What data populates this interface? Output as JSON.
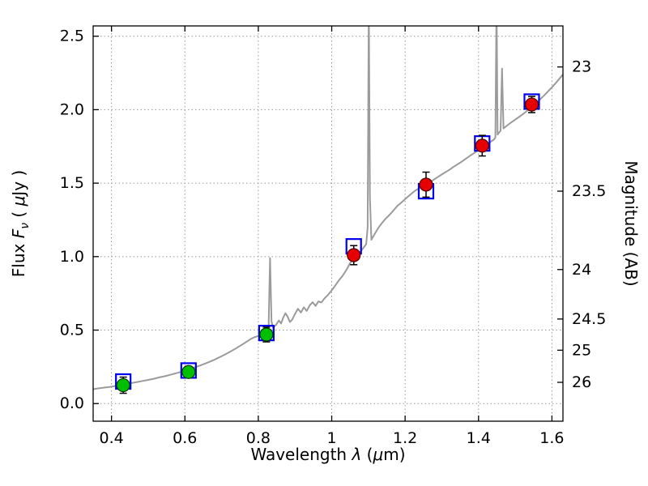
{
  "figure": {
    "background": "#ffffff",
    "frame_color": "#000000"
  },
  "chart_data": {
    "type": "line+scatter",
    "title": "",
    "xlabel_parts": [
      {
        "t": "Wavelength  "
      },
      {
        "t": "λ",
        "i": true
      },
      {
        "t": " ("
      },
      {
        "t": "μ",
        "i": true
      },
      {
        "t": "m)"
      }
    ],
    "ylabel_left_parts": [
      {
        "t": "Flux  "
      },
      {
        "t": "F",
        "i": true
      },
      {
        "t": "ν",
        "i": true,
        "sub": true
      },
      {
        "t": "  ( "
      },
      {
        "t": "μ",
        "i": true
      },
      {
        "t": "Jy )"
      }
    ],
    "ylabel_right": "Magnitude (AB)",
    "xlim": [
      0.35,
      1.63
    ],
    "ylim": [
      -0.12,
      2.57
    ],
    "x_ticks": [
      0.4,
      0.6,
      0.8,
      1.0,
      1.2,
      1.4,
      1.6
    ],
    "x_tick_labels": [
      "0.4",
      "0.6",
      "0.8",
      "1",
      "1.2",
      "1.4",
      "1.6"
    ],
    "y_ticks_left": [
      0.0,
      0.5,
      1.0,
      1.5,
      2.0,
      2.5
    ],
    "y_tick_labels_left": [
      "0.0",
      "0.5",
      "1.0",
      "1.5",
      "2.0",
      "2.5"
    ],
    "right_axis": {
      "tick_mags": [
        23,
        23.5,
        24,
        24.5,
        25,
        26
      ],
      "tick_labels": [
        "23",
        "23.5",
        "24",
        "24.5",
        "25",
        "26"
      ],
      "mag_zeropoint": 23.9
    },
    "grid": {
      "visible": true,
      "style": "dotted",
      "color": "#999999"
    },
    "spectrum": {
      "name": "model-spectrum",
      "color": "#9b9b9b",
      "points": [
        [
          0.35,
          0.098
        ],
        [
          0.365,
          0.104
        ],
        [
          0.38,
          0.109
        ],
        [
          0.395,
          0.113
        ],
        [
          0.41,
          0.12
        ],
        [
          0.425,
          0.126
        ],
        [
          0.44,
          0.133
        ],
        [
          0.455,
          0.14
        ],
        [
          0.47,
          0.147
        ],
        [
          0.485,
          0.154
        ],
        [
          0.5,
          0.161
        ],
        [
          0.515,
          0.169
        ],
        [
          0.53,
          0.178
        ],
        [
          0.545,
          0.186
        ],
        [
          0.56,
          0.196
        ],
        [
          0.575,
          0.206
        ],
        [
          0.59,
          0.217
        ],
        [
          0.605,
          0.228
        ],
        [
          0.62,
          0.24
        ],
        [
          0.635,
          0.253
        ],
        [
          0.65,
          0.267
        ],
        [
          0.665,
          0.282
        ],
        [
          0.68,
          0.298
        ],
        [
          0.695,
          0.316
        ],
        [
          0.71,
          0.335
        ],
        [
          0.725,
          0.355
        ],
        [
          0.74,
          0.377
        ],
        [
          0.755,
          0.4
        ],
        [
          0.77,
          0.424
        ],
        [
          0.78,
          0.44
        ],
        [
          0.79,
          0.452
        ],
        [
          0.8,
          0.46
        ],
        [
          0.808,
          0.455
        ],
        [
          0.815,
          0.465
        ],
        [
          0.822,
          0.475
        ],
        [
          0.828,
          0.52
        ],
        [
          0.832,
          0.99
        ],
        [
          0.836,
          0.56
        ],
        [
          0.84,
          0.515
        ],
        [
          0.848,
          0.535
        ],
        [
          0.856,
          0.565
        ],
        [
          0.862,
          0.545
        ],
        [
          0.868,
          0.585
        ],
        [
          0.874,
          0.615
        ],
        [
          0.88,
          0.59
        ],
        [
          0.886,
          0.555
        ],
        [
          0.892,
          0.57
        ],
        [
          0.9,
          0.61
        ],
        [
          0.908,
          0.645
        ],
        [
          0.916,
          0.62
        ],
        [
          0.924,
          0.655
        ],
        [
          0.932,
          0.63
        ],
        [
          0.94,
          0.668
        ],
        [
          0.948,
          0.69
        ],
        [
          0.956,
          0.665
        ],
        [
          0.964,
          0.695
        ],
        [
          0.972,
          0.688
        ],
        [
          0.98,
          0.715
        ],
        [
          0.99,
          0.74
        ],
        [
          1.0,
          0.77
        ],
        [
          1.01,
          0.805
        ],
        [
          1.02,
          0.84
        ],
        [
          1.03,
          0.87
        ],
        [
          1.04,
          0.91
        ],
        [
          1.05,
          0.955
        ],
        [
          1.06,
          0.99
        ],
        [
          1.07,
          1.015
        ],
        [
          1.08,
          1.04
        ],
        [
          1.088,
          1.065
        ],
        [
          1.094,
          1.085
        ],
        [
          1.098,
          1.2
        ],
        [
          1.101,
          2.75
        ],
        [
          1.104,
          1.4
        ],
        [
          1.108,
          1.115
        ],
        [
          1.115,
          1.145
        ],
        [
          1.123,
          1.18
        ],
        [
          1.131,
          1.21
        ],
        [
          1.139,
          1.235
        ],
        [
          1.147,
          1.258
        ],
        [
          1.155,
          1.278
        ],
        [
          1.163,
          1.3
        ],
        [
          1.171,
          1.322
        ],
        [
          1.179,
          1.345
        ],
        [
          1.187,
          1.362
        ],
        [
          1.195,
          1.38
        ],
        [
          1.203,
          1.398
        ],
        [
          1.211,
          1.415
        ],
        [
          1.219,
          1.432
        ],
        [
          1.227,
          1.448
        ],
        [
          1.235,
          1.46
        ],
        [
          1.243,
          1.472
        ],
        [
          1.251,
          1.482
        ],
        [
          1.259,
          1.492
        ],
        [
          1.267,
          1.505
        ],
        [
          1.275,
          1.518
        ],
        [
          1.283,
          1.532
        ],
        [
          1.291,
          1.545
        ],
        [
          1.299,
          1.558
        ],
        [
          1.307,
          1.57
        ],
        [
          1.315,
          1.582
        ],
        [
          1.323,
          1.595
        ],
        [
          1.331,
          1.61
        ],
        [
          1.339,
          1.622
        ],
        [
          1.347,
          1.635
        ],
        [
          1.355,
          1.648
        ],
        [
          1.363,
          1.662
        ],
        [
          1.371,
          1.676
        ],
        [
          1.379,
          1.69
        ],
        [
          1.387,
          1.703
        ],
        [
          1.395,
          1.717
        ],
        [
          1.403,
          1.73
        ],
        [
          1.411,
          1.744
        ],
        [
          1.419,
          1.758
        ],
        [
          1.427,
          1.772
        ],
        [
          1.435,
          1.785
        ],
        [
          1.441,
          1.795
        ],
        [
          1.446,
          1.81
        ],
        [
          1.449,
          2.75
        ],
        [
          1.452,
          1.83
        ],
        [
          1.456,
          1.845
        ],
        [
          1.46,
          1.856
        ],
        [
          1.464,
          2.28
        ],
        [
          1.468,
          1.872
        ],
        [
          1.474,
          1.884
        ],
        [
          1.482,
          1.9
        ],
        [
          1.49,
          1.915
        ],
        [
          1.5,
          1.932
        ],
        [
          1.51,
          1.95
        ],
        [
          1.52,
          1.968
        ],
        [
          1.53,
          1.988
        ],
        [
          1.54,
          2.008
        ],
        [
          1.55,
          2.028
        ],
        [
          1.56,
          2.052
        ],
        [
          1.57,
          2.076
        ],
        [
          1.58,
          2.1
        ],
        [
          1.59,
          2.126
        ],
        [
          1.6,
          2.152
        ],
        [
          1.61,
          2.18
        ],
        [
          1.62,
          2.21
        ],
        [
          1.63,
          2.24
        ]
      ]
    },
    "model_photometry": {
      "name": "model-photometry",
      "marker": "open-square",
      "color": "#0000ee",
      "points": [
        [
          0.432,
          0.15
        ],
        [
          0.61,
          0.225
        ],
        [
          0.822,
          0.48
        ],
        [
          1.06,
          1.07
        ],
        [
          1.257,
          1.445
        ],
        [
          1.41,
          1.77
        ],
        [
          1.545,
          2.055
        ]
      ]
    },
    "observed_photometry": [
      {
        "name": "observed-optical-points",
        "marker": "circle",
        "color": "#00bf00",
        "edge_color": "#003c00",
        "error_color": "#000000",
        "points": [
          {
            "x": 0.432,
            "y": 0.125,
            "err": 0.055
          },
          {
            "x": 0.61,
            "y": 0.215,
            "err": 0.035
          },
          {
            "x": 0.822,
            "y": 0.47,
            "err": 0.05
          }
        ]
      },
      {
        "name": "observed-infrared-points",
        "marker": "circle",
        "color": "#e60000",
        "edge_color": "#4d0000",
        "error_color": "#000000",
        "points": [
          {
            "x": 1.06,
            "y": 1.01,
            "err": 0.065
          },
          {
            "x": 1.257,
            "y": 1.49,
            "err": 0.085
          },
          {
            "x": 1.41,
            "y": 1.755,
            "err": 0.07
          },
          {
            "x": 1.545,
            "y": 2.035,
            "err": 0.055
          }
        ]
      }
    ]
  }
}
